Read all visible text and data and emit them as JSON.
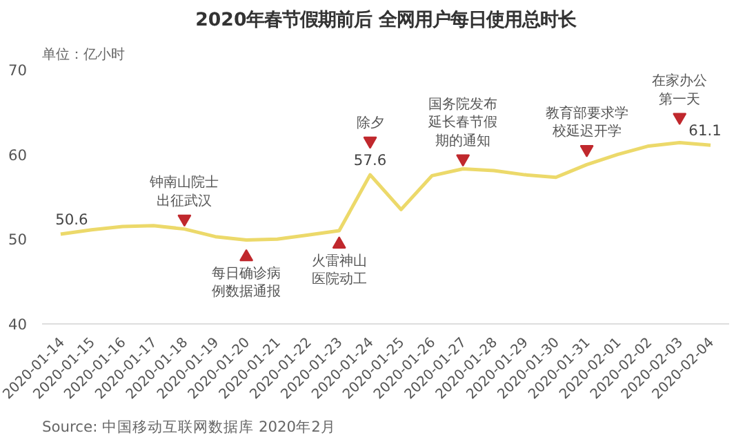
{
  "chart_data": {
    "type": "line",
    "title": "2020年春节假期前后 全网用户每日使用总时长",
    "ylabel": "单位：亿小时",
    "categories": [
      "2020-01-14",
      "2020-01-15",
      "2020-01-16",
      "2020-01-17",
      "2020-01-18",
      "2020-01-19",
      "2020-01-20",
      "2020-01-21",
      "2020-01-22",
      "2020-01-23",
      "2020-01-24",
      "2020-01-25",
      "2020-01-26",
      "2020-01-27",
      "2020-01-28",
      "2020-01-29",
      "2020-01-30",
      "2020-01-31",
      "2020-02-01",
      "2020-02-02",
      "2020-02-03",
      "2020-02-04"
    ],
    "series": [
      {
        "color": "#ecd96a",
        "values": [
          50.6,
          51.1,
          51.5,
          51.6,
          51.2,
          50.3,
          49.9,
          50.0,
          50.5,
          51.0,
          57.6,
          53.5,
          57.5,
          58.3,
          58.1,
          57.6,
          57.3,
          58.8,
          60.0,
          61.0,
          61.4,
          61.1
        ],
        "value_labels": [
          "50.6",
          null,
          null,
          null,
          null,
          null,
          null,
          null,
          null,
          null,
          "57.6",
          null,
          null,
          null,
          null,
          null,
          null,
          null,
          null,
          null,
          null,
          "61.1"
        ]
      }
    ],
    "ylim": [
      40,
      70
    ],
    "yticks": [
      40,
      50,
      60,
      70
    ],
    "grid": false,
    "marker": "none",
    "line_style": "solid",
    "annotations": [
      {
        "text": "钟南山院士出征武汉",
        "x": "2020-01-18",
        "y": 52.4
      },
      {
        "text": "每日确诊病例数据通报",
        "x": "2020-01-20",
        "y": 47.9
      },
      {
        "text": "火雷神山医院动工",
        "x": "2020-01-23",
        "y": 49.4
      },
      {
        "text": "除夕",
        "x": "2020-01-24",
        "y": 61.6
      },
      {
        "text": "国务院发布延长春节假期的通知",
        "x": "2020-01-27",
        "y": 59.5
      },
      {
        "text": "教育部要求学校延迟开学",
        "x": "2020-01-31",
        "y": 60.6
      },
      {
        "text": "在家办公第一天",
        "x": "2020-02-03",
        "y": 64.4
      },
      "Source: 中国移动互联网数据库 2020年2月"
    ]
  }
}
